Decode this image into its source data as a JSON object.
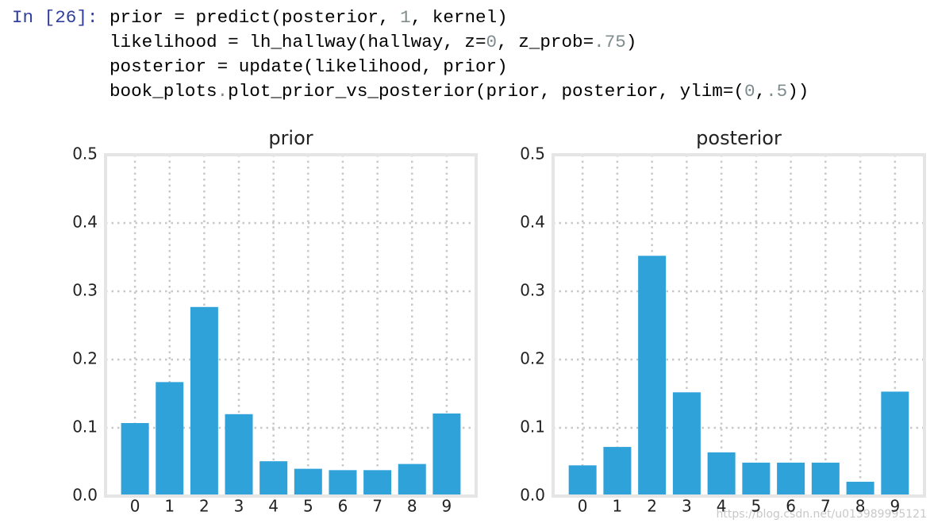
{
  "cell": {
    "prompt": "In [26]:",
    "lines": [
      [
        "prior = predict(posterior, ",
        "1",
        ", kernel)"
      ],
      [
        "likelihood = lh_hallway(hallway, z=",
        "0",
        ", z_prob=",
        ".75",
        ")"
      ],
      [
        "posterior = update(likelihood, prior)"
      ],
      [
        "book_plots",
        ".",
        "plot_prior_vs_posterior(prior, posterior, ylim=(",
        "0",
        ",",
        ".5",
        "))"
      ]
    ]
  },
  "chart_data": [
    {
      "type": "bar",
      "title": "prior",
      "categories": [
        "0",
        "1",
        "2",
        "3",
        "4",
        "5",
        "6",
        "7",
        "8",
        "9"
      ],
      "values": [
        0.107,
        0.167,
        0.277,
        0.12,
        0.051,
        0.04,
        0.038,
        0.038,
        0.047,
        0.121
      ],
      "color": "#30a2da",
      "ylim": [
        0,
        0.5
      ],
      "yticks": [
        {
          "value": 0,
          "label": "0.0"
        },
        0.1,
        0.2,
        0.3,
        0.4,
        0.5
      ],
      "grid": true
    },
    {
      "type": "bar",
      "title": "posterior",
      "categories": [
        "0",
        "1",
        "2",
        "3",
        "4",
        "5",
        "6",
        "7",
        "8",
        "9"
      ],
      "values": [
        0.045,
        0.072,
        0.352,
        0.152,
        0.064,
        0.049,
        0.049,
        0.049,
        0.021,
        0.153
      ],
      "color": "#30a2da",
      "ylim": [
        0,
        0.5
      ],
      "yticks": [
        {
          "value": 0,
          "label": "0.0"
        },
        0.1,
        0.2,
        0.3,
        0.4,
        0.5
      ],
      "grid": true
    }
  ],
  "watermark": "https://blog.csdn.net/u013989995121"
}
